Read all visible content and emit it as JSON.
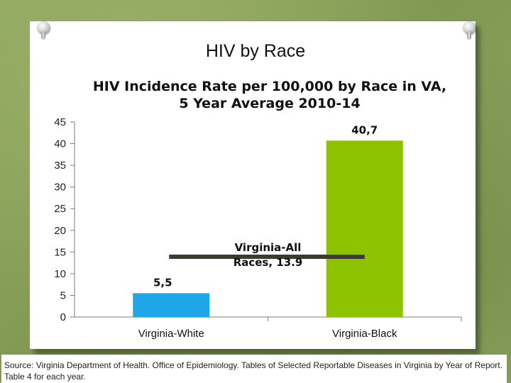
{
  "slide": {
    "title": "HIV by Race",
    "source": "Source: Virginia Department of Health. Office of Epidemiology. Tables of Selected Reportable Diseases in Virginia by Year of Report. Table 4 for each year."
  },
  "chart_data": {
    "type": "bar",
    "title_lines": [
      "HIV Incidence Rate per 100,000 by Race in VA,",
      "5 Year Average 2010-14"
    ],
    "categories": [
      "Virginia-White",
      "Virginia-Black"
    ],
    "values": [
      5.5,
      40.7
    ],
    "data_labels": [
      "5,5",
      "40,7"
    ],
    "bar_colors": [
      "#1fa6e6",
      "#8cc200"
    ],
    "ylim": [
      0,
      45
    ],
    "yticks": [
      0,
      5,
      10,
      15,
      20,
      25,
      30,
      35,
      40,
      45
    ],
    "reference_line": {
      "value": 13.9,
      "label_lines": [
        "Virginia-All",
        "Races, 13.9"
      ],
      "color": "#3d3b30"
    },
    "xlabel": "",
    "ylabel": ""
  }
}
